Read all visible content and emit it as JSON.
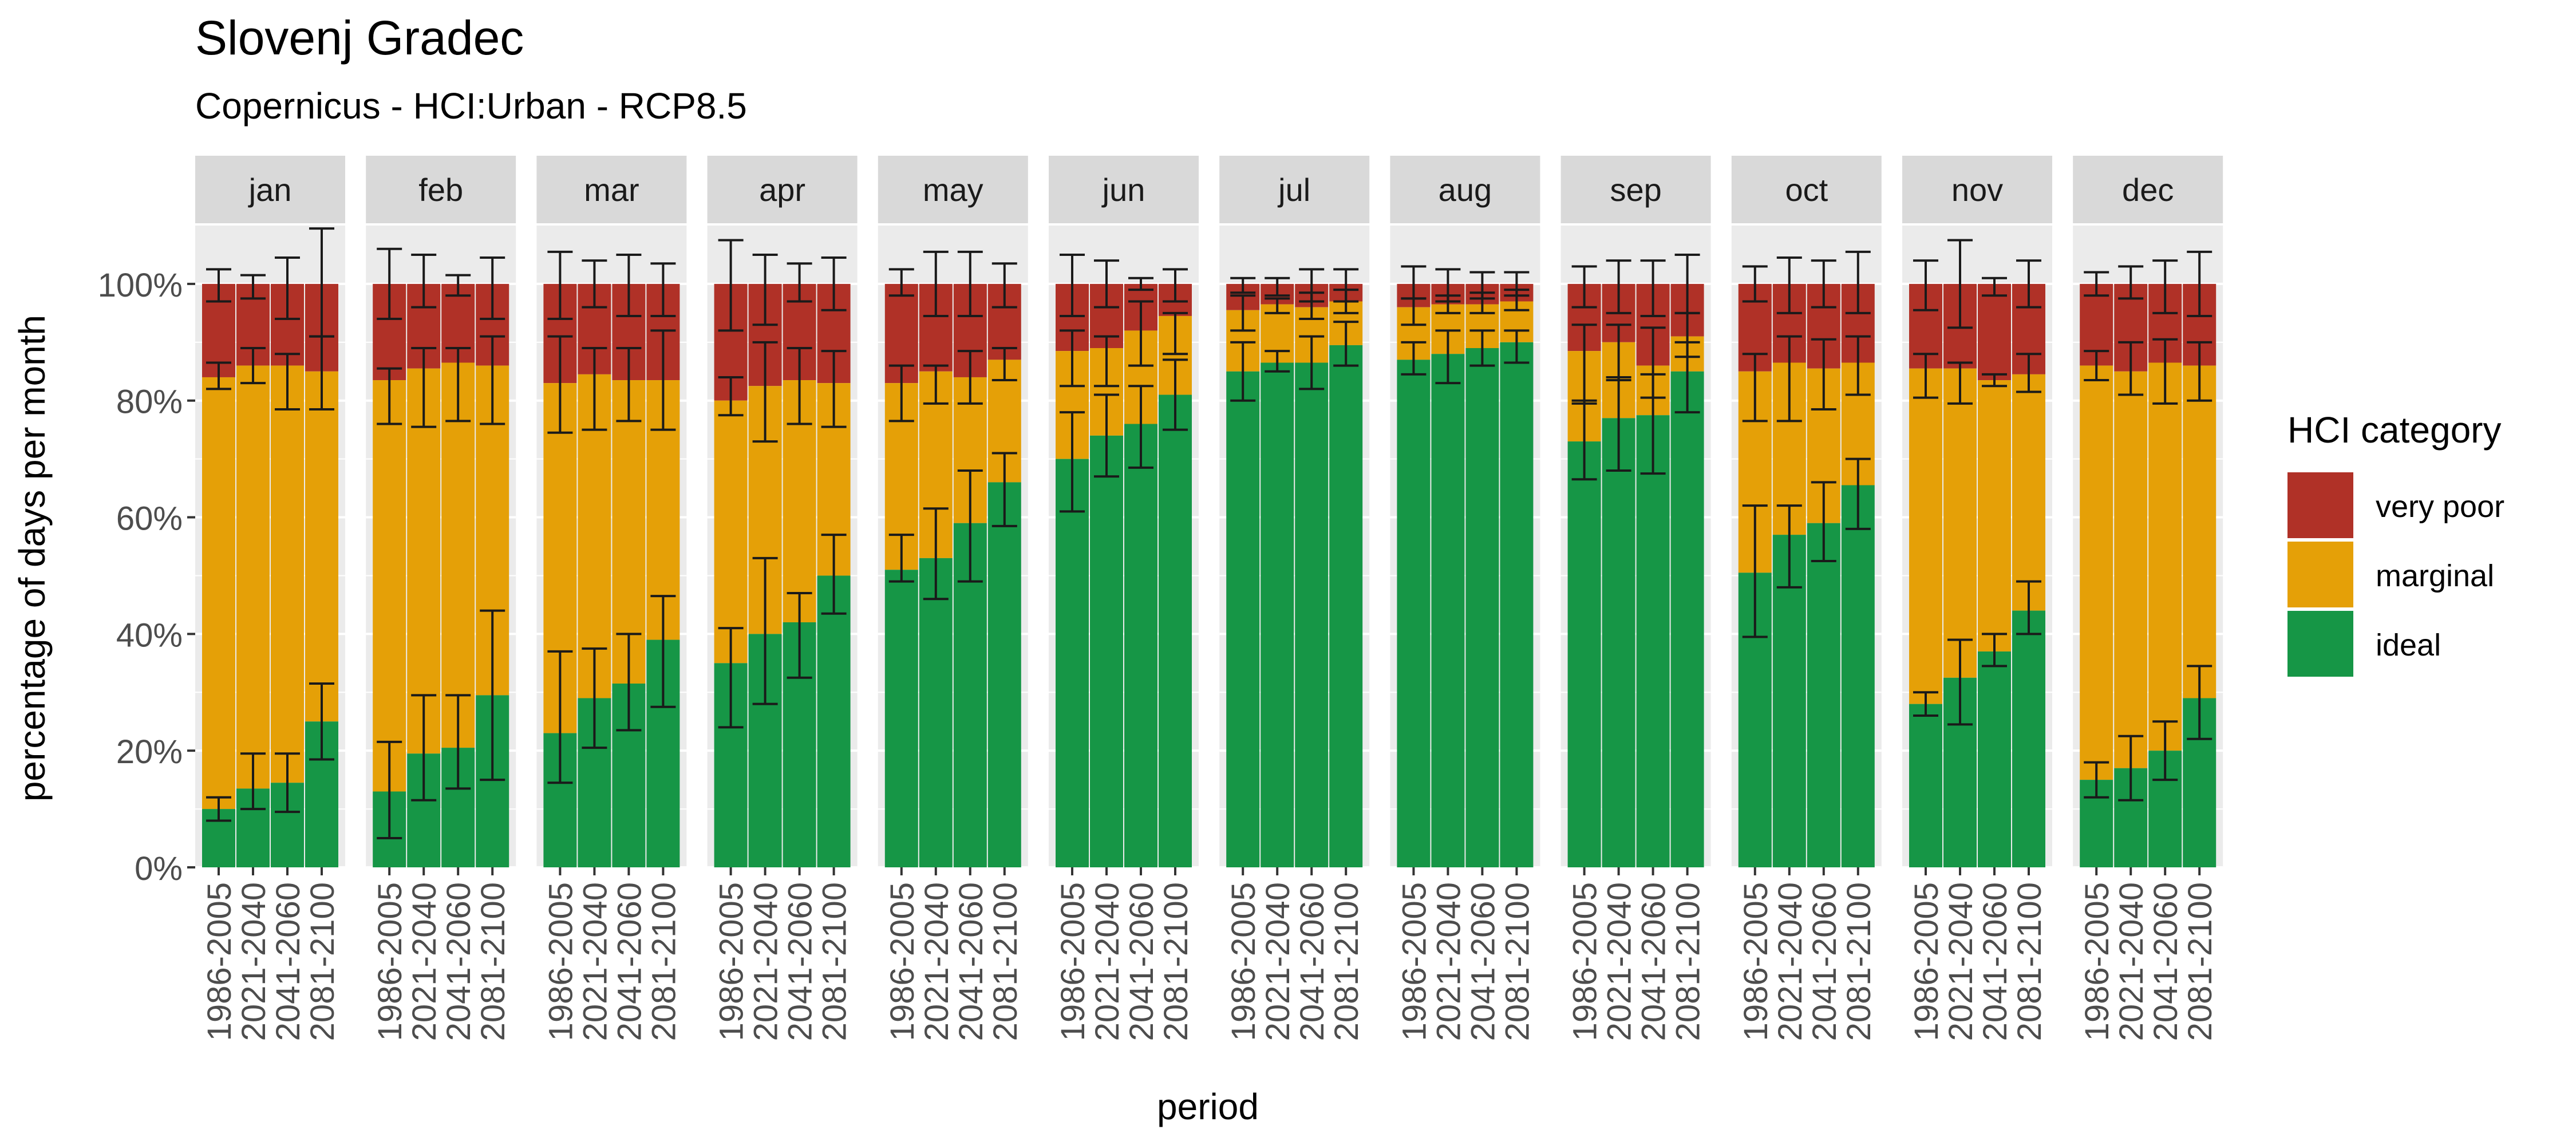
{
  "chart_data": {
    "type": "bar",
    "stacked": true,
    "title": "Slovenj Gradec",
    "subtitle": "Copernicus - HCI:Urban - RCP8.5",
    "xlabel": "period",
    "ylabel": "percentage of days per month",
    "ylim": [
      0,
      110
    ],
    "yticks": [
      0,
      20,
      40,
      60,
      80,
      100
    ],
    "ytick_labels": [
      "0%",
      "20%",
      "40%",
      "60%",
      "80%",
      "100%"
    ],
    "facets": [
      "jan",
      "feb",
      "mar",
      "apr",
      "may",
      "jun",
      "jul",
      "aug",
      "sep",
      "oct",
      "nov",
      "dec"
    ],
    "categories": [
      "1986-2005",
      "2021-2040",
      "2041-2060",
      "2081-2100"
    ],
    "legend": {
      "title": "HCI category",
      "position": "right",
      "items": [
        {
          "name": "very poor",
          "color": "#B03127"
        },
        {
          "name": "marginal",
          "color": "#E5A007"
        },
        {
          "name": "ideal",
          "color": "#169646"
        }
      ]
    },
    "grid": true,
    "panel_color": "#EBEBEB",
    "strip_color": "#D9D9D9",
    "ideal": [
      [
        10,
        13.5,
        14.5,
        25
      ],
      [
        13,
        19.5,
        20.5,
        29.5
      ],
      [
        23,
        29,
        31.5,
        39
      ],
      [
        35,
        40,
        42,
        50
      ],
      [
        51,
        53,
        59,
        66
      ],
      [
        70,
        74,
        76,
        81
      ],
      [
        85,
        86.5,
        86.5,
        89.5
      ],
      [
        87,
        88,
        89,
        90
      ],
      [
        73,
        77,
        77.5,
        85
      ],
      [
        50.5,
        57,
        59,
        65.5
      ],
      [
        28,
        32.5,
        37,
        44
      ],
      [
        15,
        17,
        20,
        29
      ]
    ],
    "ideal_err": [
      [
        [
          8,
          12
        ],
        [
          10,
          19.5
        ],
        [
          9.5,
          19.5
        ],
        [
          18.5,
          31.5
        ]
      ],
      [
        [
          5,
          21.5
        ],
        [
          11.5,
          29.5
        ],
        [
          13.5,
          29.5
        ],
        [
          15,
          44
        ]
      ],
      [
        [
          14.5,
          37
        ],
        [
          20.5,
          37.5
        ],
        [
          23.5,
          40
        ],
        [
          27.5,
          46.5
        ]
      ],
      [
        [
          24,
          41
        ],
        [
          28,
          53
        ],
        [
          32.5,
          47
        ],
        [
          43.5,
          57
        ]
      ],
      [
        [
          49,
          57
        ],
        [
          46,
          61.5
        ],
        [
          49,
          68
        ],
        [
          58.5,
          71
        ]
      ],
      [
        [
          61,
          78
        ],
        [
          67,
          81
        ],
        [
          68.5,
          82.5
        ],
        [
          75,
          87
        ]
      ],
      [
        [
          80,
          90
        ],
        [
          85,
          88.5
        ],
        [
          82,
          91
        ],
        [
          86,
          93.5
        ]
      ],
      [
        [
          84.5,
          90
        ],
        [
          83,
          92
        ],
        [
          86,
          92
        ],
        [
          86.5,
          92
        ]
      ],
      [
        [
          66.5,
          80
        ],
        [
          68,
          84
        ],
        [
          67.5,
          84.5
        ],
        [
          78,
          90
        ]
      ],
      [
        [
          39.5,
          62
        ],
        [
          48,
          62
        ],
        [
          52.5,
          66
        ],
        [
          58,
          70
        ]
      ],
      [
        [
          26,
          30
        ],
        [
          24.5,
          39
        ],
        [
          34.5,
          40
        ],
        [
          40,
          49
        ]
      ],
      [
        [
          12,
          18
        ],
        [
          11.5,
          22.5
        ],
        [
          15,
          25
        ],
        [
          22,
          34.5
        ]
      ]
    ],
    "marginal_top": [
      [
        84,
        86,
        86,
        85
      ],
      [
        83.5,
        85.5,
        86.5,
        86
      ],
      [
        83,
        84.5,
        83.5,
        83.5
      ],
      [
        80,
        82.5,
        83.5,
        83
      ],
      [
        83,
        85,
        84,
        87
      ],
      [
        88.5,
        89,
        92,
        94.5
      ],
      [
        95.5,
        96.5,
        96,
        97
      ],
      [
        96,
        96.5,
        96.5,
        97
      ],
      [
        88.5,
        90,
        86,
        91
      ],
      [
        85,
        86.5,
        85.5,
        86.5
      ],
      [
        85.5,
        85.5,
        83.5,
        84.5
      ],
      [
        86,
        85,
        86.5,
        86
      ]
    ],
    "marginal_err": [
      [
        [
          82,
          86.5
        ],
        [
          83,
          89
        ],
        [
          78.5,
          88
        ],
        [
          78.5,
          91
        ]
      ],
      [
        [
          76,
          85.5
        ],
        [
          75.5,
          89
        ],
        [
          76.5,
          89
        ],
        [
          76,
          91
        ]
      ],
      [
        [
          74.5,
          91
        ],
        [
          75,
          89
        ],
        [
          76.5,
          89
        ],
        [
          75,
          92
        ]
      ],
      [
        [
          77.5,
          84
        ],
        [
          73,
          90
        ],
        [
          76,
          89
        ],
        [
          75.5,
          88.5
        ]
      ],
      [
        [
          76.5,
          86
        ],
        [
          79.5,
          86
        ],
        [
          79.5,
          88.5
        ],
        [
          83.5,
          89
        ]
      ],
      [
        [
          82.5,
          92
        ],
        [
          82.5,
          91
        ],
        [
          86,
          97
        ],
        [
          88,
          95
        ]
      ],
      [
        [
          92,
          98
        ],
        [
          95,
          97.5
        ],
        [
          94,
          98.5
        ],
        [
          95,
          99
        ]
      ],
      [
        [
          93,
          97.5
        ],
        [
          95,
          98
        ],
        [
          95,
          98.5
        ],
        [
          95.5,
          99
        ]
      ],
      [
        [
          79.5,
          93
        ],
        [
          83.5,
          93
        ],
        [
          80.5,
          92.5
        ],
        [
          87.5,
          95
        ]
      ],
      [
        [
          76.5,
          88
        ],
        [
          76.5,
          91
        ],
        [
          78.5,
          90.5
        ],
        [
          81,
          91
        ]
      ],
      [
        [
          80.5,
          88
        ],
        [
          79.5,
          86.5
        ],
        [
          82.5,
          84.5
        ],
        [
          81.5,
          88
        ]
      ],
      [
        [
          83.5,
          88.5
        ],
        [
          81,
          90
        ],
        [
          79.5,
          90.5
        ],
        [
          80,
          90
        ]
      ]
    ],
    "total_err": [
      [
        [
          97,
          102.5
        ],
        [
          97.5,
          101.5
        ],
        [
          94,
          104.5
        ],
        [
          91,
          109.5
        ]
      ],
      [
        [
          94,
          106
        ],
        [
          96,
          105
        ],
        [
          98,
          101.5
        ],
        [
          94,
          104.5
        ]
      ],
      [
        [
          94,
          105.5
        ],
        [
          96,
          104
        ],
        [
          94.5,
          105
        ],
        [
          94.5,
          103.5
        ]
      ],
      [
        [
          92,
          107.5
        ],
        [
          93,
          105
        ],
        [
          97,
          103.5
        ],
        [
          95.5,
          104.5
        ]
      ],
      [
        [
          98,
          102.5
        ],
        [
          94.5,
          105.5
        ],
        [
          94.5,
          105.5
        ],
        [
          96,
          103.5
        ]
      ],
      [
        [
          94.5,
          105
        ],
        [
          96,
          104
        ],
        [
          99,
          101
        ],
        [
          97,
          102.5
        ]
      ],
      [
        [
          98.5,
          101
        ],
        [
          98,
          101
        ],
        [
          97,
          102.5
        ],
        [
          97,
          102.5
        ]
      ],
      [
        [
          97.5,
          103
        ],
        [
          97,
          102.5
        ],
        [
          97.5,
          102
        ],
        [
          98,
          102
        ]
      ],
      [
        [
          96,
          103
        ],
        [
          95,
          104
        ],
        [
          94.5,
          104
        ],
        [
          95,
          105
        ]
      ],
      [
        [
          97,
          103
        ],
        [
          95,
          104.5
        ],
        [
          96,
          104
        ],
        [
          95,
          105.5
        ]
      ],
      [
        [
          95.5,
          104
        ],
        [
          92.5,
          107.5
        ],
        [
          98,
          101
        ],
        [
          96,
          104
        ]
      ],
      [
        [
          98,
          102
        ],
        [
          97.5,
          103
        ],
        [
          95,
          104
        ],
        [
          94.5,
          105.5
        ]
      ]
    ]
  }
}
